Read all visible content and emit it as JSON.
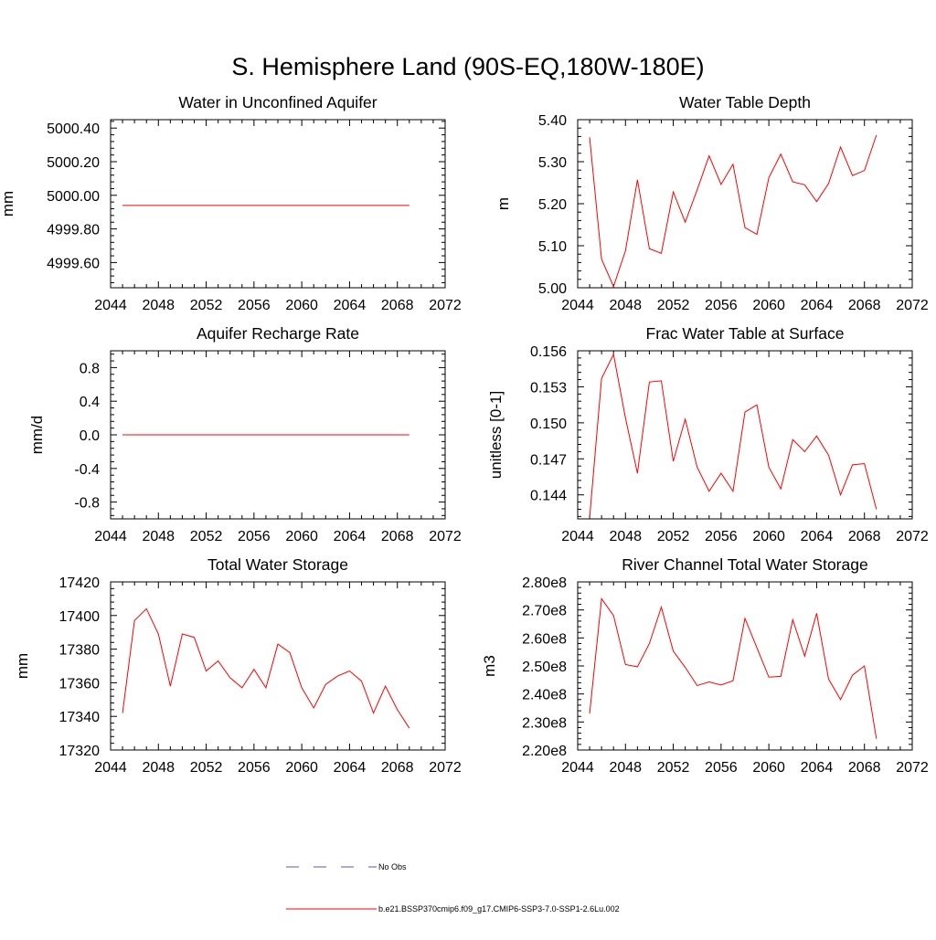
{
  "page": {
    "title": "S. Hemisphere Land (90S-EQ,180W-180E)"
  },
  "legend": {
    "entries": [
      {
        "label": "No Obs",
        "color": "#5a5aa0",
        "style": "dashed"
      },
      {
        "label": "b.e21.BSSP370cmip6.f09_g17.CMIP6-SSP3-7.0-SSP1-2.6Lu.002",
        "color": "#ff0000",
        "style": "solid"
      }
    ]
  },
  "chart_data": [
    {
      "type": "line",
      "title": "Water in Unconfined Aquifer",
      "xlabel": "",
      "ylabel": "mm",
      "xlim": [
        2044,
        2072
      ],
      "ylim": [
        4999.45,
        5000.45
      ],
      "xticks": [
        2044,
        2048,
        2052,
        2056,
        2060,
        2064,
        2068,
        2072
      ],
      "xtick_labels": [
        "2044",
        "2048",
        "2052",
        "2056",
        "2060",
        "2064",
        "2068",
        "2072"
      ],
      "yticks": [
        4999.6,
        4999.8,
        5000.0,
        5000.2,
        5000.4
      ],
      "ytick_labels": [
        "4999.60",
        "4999.80",
        "5000.00",
        "5000.20",
        "5000.40"
      ],
      "x": [
        2045,
        2046,
        2047,
        2048,
        2049,
        2050,
        2051,
        2052,
        2053,
        2054,
        2055,
        2056,
        2057,
        2058,
        2059,
        2060,
        2061,
        2062,
        2063,
        2064,
        2065,
        2066,
        2067,
        2068,
        2069
      ],
      "series": [
        {
          "color": "#ff0000",
          "values": [
            4999.94,
            4999.94,
            4999.94,
            4999.94,
            4999.94,
            4999.94,
            4999.94,
            4999.94,
            4999.94,
            4999.94,
            4999.94,
            4999.94,
            4999.94,
            4999.94,
            4999.94,
            4999.94,
            4999.94,
            4999.94,
            4999.94,
            4999.94,
            4999.94,
            4999.94,
            4999.94,
            4999.94,
            4999.94
          ]
        }
      ]
    },
    {
      "type": "line",
      "title": "Water Table Depth",
      "xlabel": "",
      "ylabel": "m",
      "xlim": [
        2044,
        2072
      ],
      "ylim": [
        5.0,
        5.4
      ],
      "xticks": [
        2044,
        2048,
        2052,
        2056,
        2060,
        2064,
        2068,
        2072
      ],
      "xtick_labels": [
        "2044",
        "2048",
        "2052",
        "2056",
        "2060",
        "2064",
        "2068",
        "2072"
      ],
      "yticks": [
        5.0,
        5.1,
        5.2,
        5.3,
        5.4
      ],
      "ytick_labels": [
        "5.00",
        "5.10",
        "5.20",
        "5.30",
        "5.40"
      ],
      "x": [
        2045,
        2046,
        2047,
        2048,
        2049,
        2050,
        2051,
        2052,
        2053,
        2054,
        2055,
        2056,
        2057,
        2058,
        2059,
        2060,
        2061,
        2062,
        2063,
        2064,
        2065,
        2066,
        2067,
        2068,
        2069
      ],
      "series": [
        {
          "color": "#ff0000",
          "values": [
            5.358,
            5.068,
            5.003,
            5.088,
            5.257,
            5.093,
            5.082,
            5.228,
            5.156,
            5.233,
            5.314,
            5.246,
            5.294,
            5.143,
            5.127,
            5.262,
            5.318,
            5.252,
            5.245,
            5.205,
            5.248,
            5.335,
            5.267,
            5.279,
            5.363
          ]
        }
      ]
    },
    {
      "type": "line",
      "title": "Aquifer Recharge Rate",
      "xlabel": "",
      "ylabel": "mm/d",
      "xlim": [
        2044,
        2072
      ],
      "ylim": [
        -1.0,
        1.0
      ],
      "xticks": [
        2044,
        2048,
        2052,
        2056,
        2060,
        2064,
        2068,
        2072
      ],
      "xtick_labels": [
        "2044",
        "2048",
        "2052",
        "2056",
        "2060",
        "2064",
        "2068",
        "2072"
      ],
      "yticks": [
        -0.8,
        -0.4,
        0.0,
        0.4,
        0.8
      ],
      "ytick_labels": [
        "-0.8",
        "-0.4",
        "0.0",
        "0.4",
        "0.8"
      ],
      "x": [
        2045,
        2046,
        2047,
        2048,
        2049,
        2050,
        2051,
        2052,
        2053,
        2054,
        2055,
        2056,
        2057,
        2058,
        2059,
        2060,
        2061,
        2062,
        2063,
        2064,
        2065,
        2066,
        2067,
        2068,
        2069
      ],
      "series": [
        {
          "color": "#ff0000",
          "values": [
            0,
            0,
            0,
            0,
            0,
            0,
            0,
            0,
            0,
            0,
            0,
            0,
            0,
            0,
            0,
            0,
            0,
            0,
            0,
            0,
            0,
            0,
            0,
            0,
            0
          ]
        }
      ]
    },
    {
      "type": "line",
      "title": "Frac Water Table at Surface",
      "xlabel": "",
      "ylabel": "unitless [0-1]",
      "xlim": [
        2044,
        2072
      ],
      "ylim": [
        0.142,
        0.156
      ],
      "xticks": [
        2044,
        2048,
        2052,
        2056,
        2060,
        2064,
        2068,
        2072
      ],
      "xtick_labels": [
        "2044",
        "2048",
        "2052",
        "2056",
        "2060",
        "2064",
        "2068",
        "2072"
      ],
      "yticks": [
        0.144,
        0.147,
        0.15,
        0.153,
        0.156
      ],
      "ytick_labels": [
        "0.144",
        "0.147",
        "0.150",
        "0.153",
        "0.156"
      ],
      "x": [
        2045,
        2046,
        2047,
        2048,
        2049,
        2050,
        2051,
        2052,
        2053,
        2054,
        2055,
        2056,
        2057,
        2058,
        2059,
        2060,
        2061,
        2062,
        2063,
        2064,
        2065,
        2066,
        2067,
        2068,
        2069
      ],
      "series": [
        {
          "color": "#ff0000",
          "values": [
            0.1421,
            0.1537,
            0.1557,
            0.1504,
            0.1458,
            0.1534,
            0.1535,
            0.1468,
            0.1503,
            0.1463,
            0.1443,
            0.1458,
            0.1443,
            0.1509,
            0.1515,
            0.1463,
            0.1445,
            0.1486,
            0.1476,
            0.1489,
            0.1473,
            0.144,
            0.1465,
            0.1466,
            0.1428
          ]
        }
      ]
    },
    {
      "type": "line",
      "title": "Total Water Storage",
      "xlabel": "",
      "ylabel": "mm",
      "xlim": [
        2044,
        2072
      ],
      "ylim": [
        17320,
        17420
      ],
      "xticks": [
        2044,
        2048,
        2052,
        2056,
        2060,
        2064,
        2068,
        2072
      ],
      "xtick_labels": [
        "2044",
        "2048",
        "2052",
        "2056",
        "2060",
        "2064",
        "2068",
        "2072"
      ],
      "yticks": [
        17320,
        17340,
        17360,
        17380,
        17400,
        17420
      ],
      "ytick_labels": [
        "17320",
        "17340",
        "17360",
        "17380",
        "17400",
        "17420"
      ],
      "x": [
        2045,
        2046,
        2047,
        2048,
        2049,
        2050,
        2051,
        2052,
        2053,
        2054,
        2055,
        2056,
        2057,
        2058,
        2059,
        2060,
        2061,
        2062,
        2063,
        2064,
        2065,
        2066,
        2067,
        2068,
        2069
      ],
      "series": [
        {
          "color": "#ff0000",
          "values": [
            17342,
            17397,
            17404,
            17389,
            17358,
            17389,
            17387,
            17367,
            17373,
            17363,
            17357,
            17368,
            17357,
            17383,
            17378,
            17357,
            17345,
            17359,
            17364,
            17367,
            17361,
            17342,
            17358,
            17344,
            17333
          ]
        }
      ]
    },
    {
      "type": "line",
      "title": "River Channel Total Water Storage",
      "xlabel": "",
      "ylabel": "m3",
      "xlim": [
        2044,
        2072
      ],
      "ylim": [
        2.2,
        2.8
      ],
      "xticks": [
        2044,
        2048,
        2052,
        2056,
        2060,
        2064,
        2068,
        2072
      ],
      "xtick_labels": [
        "2044",
        "2048",
        "2052",
        "2056",
        "2060",
        "2064",
        "2068",
        "2072"
      ],
      "yticks": [
        2.2,
        2.3,
        2.4,
        2.5,
        2.6,
        2.7,
        2.8
      ],
      "ytick_labels": [
        "2.20e8",
        "2.30e8",
        "2.40e8",
        "2.50e8",
        "2.60e8",
        "2.70e8",
        "2.80e8"
      ],
      "y_unit_scale": "e8",
      "x": [
        2045,
        2046,
        2047,
        2048,
        2049,
        2050,
        2051,
        2052,
        2053,
        2054,
        2055,
        2056,
        2057,
        2058,
        2059,
        2060,
        2061,
        2062,
        2063,
        2064,
        2065,
        2066,
        2067,
        2068,
        2069
      ],
      "series": [
        {
          "color": "#ff0000",
          "values": [
            2.33,
            2.74,
            2.68,
            2.505,
            2.497,
            2.58,
            2.71,
            2.553,
            2.495,
            2.43,
            2.443,
            2.432,
            2.447,
            2.67,
            2.565,
            2.46,
            2.463,
            2.665,
            2.535,
            2.688,
            2.453,
            2.38,
            2.467,
            2.5,
            2.24
          ]
        }
      ]
    }
  ]
}
